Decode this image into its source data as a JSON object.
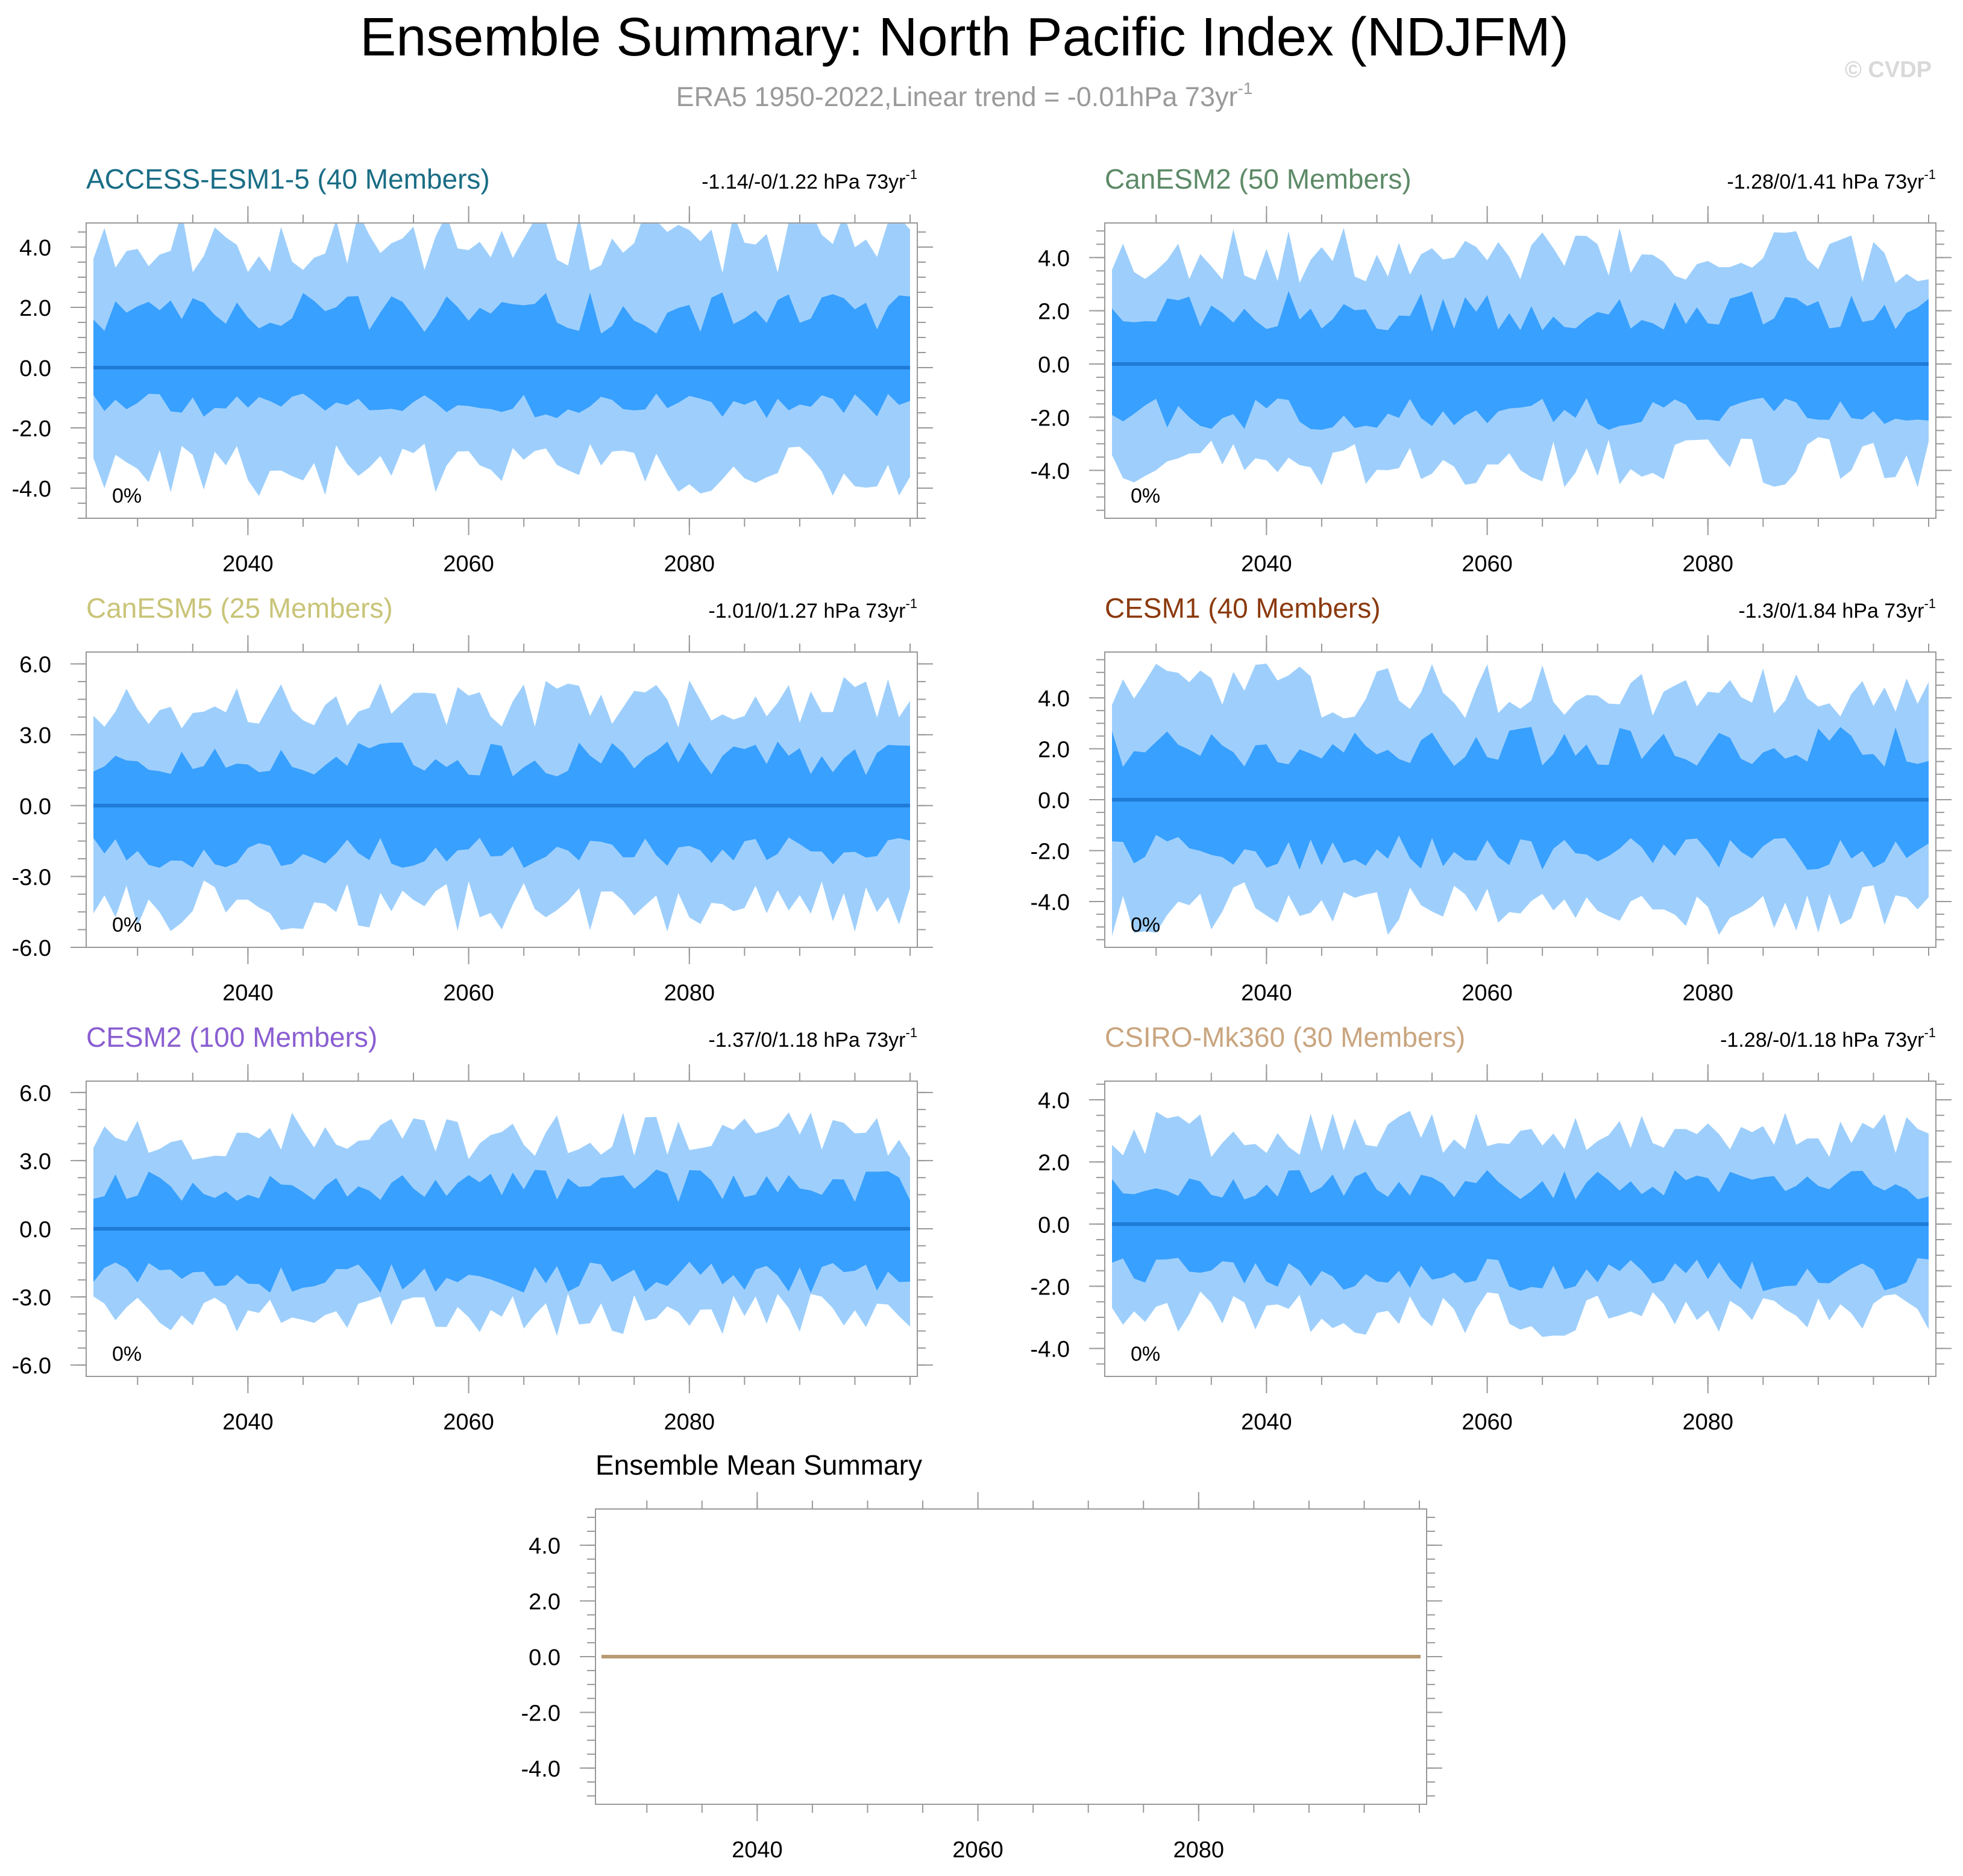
{
  "title": "Ensemble Summary: North Pacific Index (NDJFM)",
  "subtitle_main": "ERA5 1950-2022,Linear trend = -0.01hPa 73yr",
  "subtitle_sup": "-1",
  "watermark": "© CVDP",
  "colors": {
    "outer_band": "#9ecffc",
    "inner_band": "#38a0ff",
    "median_line": "#1f7bd6",
    "mean_summary_line": "#b89a72",
    "frame": "#999999"
  },
  "chart_data": [
    {
      "type": "area",
      "title": "ACCESS-ESM1-5 (40 Members)",
      "title_color": "#1a6d85",
      "trend_label": "-1.14/-0/1.22 hPa 73yr",
      "trend_sup": "-1",
      "percent_label": "0%",
      "x_start": 2026,
      "x_end": 2100,
      "ylim": [
        -5.0,
        4.8
      ],
      "yticks": [
        4.0,
        2.0,
        0.0,
        -2.0,
        -4.0
      ],
      "ytick_labels": [
        "4.0",
        "2.0",
        "0.0",
        "-2.0",
        "-4.0"
      ],
      "xticks": [
        2040,
        2060,
        2080
      ],
      "xtick_labels": [
        "2040",
        "2060",
        "2080"
      ],
      "outer_amp": [
        4.3,
        3.5
      ],
      "inner_amp": [
        2.0,
        1.4
      ],
      "seed": 11,
      "median": 0.0
    },
    {
      "type": "area",
      "title": "CanESM2 (50 Members)",
      "title_color": "#5d8a67",
      "trend_label": "-1.28/0/1.41 hPa 73yr",
      "trend_sup": "-1",
      "percent_label": "0%",
      "x_start": 2026,
      "x_end": 2100,
      "ylim": [
        -5.8,
        5.3
      ],
      "yticks": [
        4.0,
        2.0,
        0.0,
        -2.0,
        -4.0
      ],
      "ytick_labels": [
        "4.0",
        "2.0",
        "0.0",
        "-2.0",
        "-4.0"
      ],
      "xticks": [
        2040,
        2060,
        2080
      ],
      "xtick_labels": [
        "2040",
        "2060",
        "2080"
      ],
      "outer_amp": [
        4.2,
        3.8
      ],
      "inner_amp": [
        2.2,
        2.1
      ],
      "seed": 23,
      "median": 0.0
    },
    {
      "type": "area",
      "title": "CanESM5 (25 Members)",
      "title_color": "#c9c478",
      "trend_label": "-1.01/0/1.27 hPa 73yr",
      "trend_sup": "-1",
      "percent_label": "0%",
      "x_start": 2026,
      "x_end": 2100,
      "ylim": [
        -6.0,
        6.5
      ],
      "yticks": [
        6.0,
        3.0,
        0.0,
        -3.0,
        -6.0
      ],
      "ytick_labels": [
        "6.0",
        "3.0",
        "0.0",
        "-3.0",
        "-6.0"
      ],
      "xticks": [
        2040,
        2060,
        2080
      ],
      "xtick_labels": [
        "2040",
        "2060",
        "2080"
      ],
      "outer_amp": [
        4.5,
        4.4
      ],
      "inner_amp": [
        2.2,
        2.2
      ],
      "seed": 37,
      "median": 0.0
    },
    {
      "type": "area",
      "title": "CESM1 (40 Members)",
      "title_color": "#8b3a0e",
      "trend_label": "-1.3/0/1.84 hPa 73yr",
      "trend_sup": "-1",
      "percent_label": "0%",
      "x_start": 2026,
      "x_end": 2100,
      "ylim": [
        -5.8,
        5.8
      ],
      "yticks": [
        4.0,
        2.0,
        0.0,
        -2.0,
        -4.0
      ],
      "ytick_labels": [
        "4.0",
        "2.0",
        "0.0",
        "-2.0",
        "-4.0"
      ],
      "xticks": [
        2040,
        2060,
        2080
      ],
      "xtick_labels": [
        "2040",
        "2060",
        "2080"
      ],
      "outer_amp": [
        4.4,
        4.4
      ],
      "inner_amp": [
        2.3,
        2.3
      ],
      "seed": 41,
      "median": 0.0
    },
    {
      "type": "area",
      "title": "CESM2 (100 Members)",
      "title_color": "#8a5ed1",
      "trend_label": "-1.37/0/1.18 hPa 73yr",
      "trend_sup": "-1",
      "percent_label": "0%",
      "x_start": 2026,
      "x_end": 2100,
      "ylim": [
        -6.5,
        6.5
      ],
      "yticks": [
        6.0,
        3.0,
        0.0,
        -3.0,
        -6.0
      ],
      "ytick_labels": [
        "6.0",
        "3.0",
        "0.0",
        "-3.0",
        "-6.0"
      ],
      "xticks": [
        2040,
        2060,
        2080
      ],
      "xtick_labels": [
        "2040",
        "2060",
        "2080"
      ],
      "outer_amp": [
        4.2,
        3.9
      ],
      "inner_amp": [
        2.1,
        2.4
      ],
      "seed": 53,
      "median": 0.0
    },
    {
      "type": "area",
      "title": "CSIRO-Mk360 (30 Members)",
      "title_color": "#c9a57f",
      "trend_label": "-1.28/-0/1.18 hPa 73yr",
      "trend_sup": "-1",
      "percent_label": "0%",
      "x_start": 2026,
      "x_end": 2100,
      "ylim": [
        -4.9,
        4.6
      ],
      "yticks": [
        4.0,
        2.0,
        0.0,
        -2.0,
        -4.0
      ],
      "ytick_labels": [
        "4.0",
        "2.0",
        "0.0",
        "-2.0",
        "-4.0"
      ],
      "xticks": [
        2040,
        2060,
        2080
      ],
      "xtick_labels": [
        "2040",
        "2060",
        "2080"
      ],
      "outer_amp": [
        3.0,
        3.0
      ],
      "inner_amp": [
        1.4,
        1.8
      ],
      "seed": 67,
      "median": 0.0
    },
    {
      "type": "line",
      "title": "Ensemble Mean Summary",
      "x_start": 2026,
      "x_end": 2100,
      "ylim": [
        -5.3,
        5.3
      ],
      "yticks": [
        4.0,
        2.0,
        0.0,
        -2.0,
        -4.0
      ],
      "ytick_labels": [
        "4.0",
        "2.0",
        "0.0",
        "-2.0",
        "-4.0"
      ],
      "xticks": [
        2040,
        2060,
        2080
      ],
      "xtick_labels": [
        "2040",
        "2060",
        "2080"
      ],
      "series": [
        {
          "name": "ensemble mean",
          "value": 0.0
        }
      ]
    }
  ]
}
